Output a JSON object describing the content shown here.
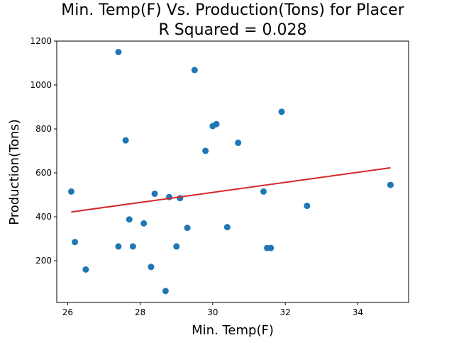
{
  "chart_data": {
    "type": "scatter",
    "title_line1": "Min. Temp(F) Vs. Production(Tons) for Placer",
    "title_line2": "R Squared =  0.028",
    "xlabel": "Min. Temp(F)",
    "ylabel": "Production(Tons)",
    "xlim": [
      25.7,
      35.4
    ],
    "ylim": [
      10,
      1200
    ],
    "xticks": [
      26,
      28,
      30,
      32,
      34
    ],
    "yticks": [
      200,
      400,
      600,
      800,
      1000,
      1200
    ],
    "grid": false,
    "legend": "none",
    "point_color": "#1f77b4",
    "line_color": "#d62728",
    "points": [
      {
        "x": 26.1,
        "y": 515
      },
      {
        "x": 26.2,
        "y": 285
      },
      {
        "x": 26.5,
        "y": 160
      },
      {
        "x": 27.4,
        "y": 1150
      },
      {
        "x": 27.4,
        "y": 265
      },
      {
        "x": 27.6,
        "y": 748
      },
      {
        "x": 27.7,
        "y": 388
      },
      {
        "x": 27.8,
        "y": 265
      },
      {
        "x": 28.1,
        "y": 370
      },
      {
        "x": 28.3,
        "y": 172
      },
      {
        "x": 28.4,
        "y": 505
      },
      {
        "x": 28.7,
        "y": 62
      },
      {
        "x": 28.8,
        "y": 490
      },
      {
        "x": 29.0,
        "y": 265
      },
      {
        "x": 29.1,
        "y": 485
      },
      {
        "x": 29.3,
        "y": 350
      },
      {
        "x": 29.5,
        "y": 1068
      },
      {
        "x": 29.8,
        "y": 700
      },
      {
        "x": 30.0,
        "y": 813
      },
      {
        "x": 30.1,
        "y": 822
      },
      {
        "x": 30.4,
        "y": 353
      },
      {
        "x": 30.7,
        "y": 737
      },
      {
        "x": 31.4,
        "y": 515
      },
      {
        "x": 31.5,
        "y": 258
      },
      {
        "x": 31.6,
        "y": 258
      },
      {
        "x": 31.9,
        "y": 878
      },
      {
        "x": 32.6,
        "y": 450
      },
      {
        "x": 34.9,
        "y": 545
      }
    ],
    "trendline": {
      "x": [
        26.1,
        34.9
      ],
      "y": [
        422,
        623
      ]
    }
  }
}
